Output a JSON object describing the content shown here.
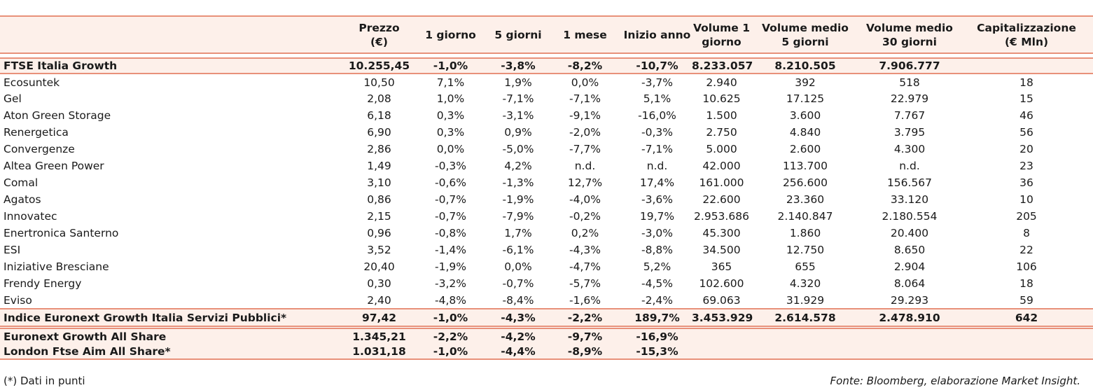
{
  "header": {
    "name": "",
    "price": [
      "Prezzo",
      "(€)"
    ],
    "d1": "1 giorno",
    "d5": "5 giorni",
    "m1": "1 mese",
    "ytd": "Inizio anno",
    "vol1": [
      "Volume 1",
      "giorno"
    ],
    "vol5": [
      "Volume medio",
      "5 giorni"
    ],
    "vol30": [
      "Volume medio",
      "30 giorni"
    ],
    "cap": [
      "Capitalizzazione",
      "(€ Mln)"
    ]
  },
  "index_row": {
    "name": "FTSE Italia Growth",
    "price": "10.255,45",
    "d1": "-1,0%",
    "d5": "-3,8%",
    "m1": "-8,2%",
    "ytd": "-10,7%",
    "vol1": "8.233.057",
    "vol5": "8.210.505",
    "vol30": "7.906.777",
    "cap": ""
  },
  "rows": [
    {
      "name": "Ecosuntek",
      "price": "10,50",
      "d1": "7,1%",
      "d5": "1,9%",
      "m1": "0,0%",
      "ytd": "-3,7%",
      "vol1": "2.940",
      "vol5": "392",
      "vol30": "518",
      "cap": "18"
    },
    {
      "name": "Gel",
      "price": "2,08",
      "d1": "1,0%",
      "d5": "-7,1%",
      "m1": "-7,1%",
      "ytd": "5,1%",
      "vol1": "10.625",
      "vol5": "17.125",
      "vol30": "22.979",
      "cap": "15"
    },
    {
      "name": "Aton Green Storage",
      "price": "6,18",
      "d1": "0,3%",
      "d5": "-3,1%",
      "m1": "-9,1%",
      "ytd": "-16,0%",
      "vol1": "1.500",
      "vol5": "3.600",
      "vol30": "7.767",
      "cap": "46"
    },
    {
      "name": "Renergetica",
      "price": "6,90",
      "d1": "0,3%",
      "d5": "0,9%",
      "m1": "-2,0%",
      "ytd": "-0,3%",
      "vol1": "2.750",
      "vol5": "4.840",
      "vol30": "3.795",
      "cap": "56"
    },
    {
      "name": "Convergenze",
      "price": "2,86",
      "d1": "0,0%",
      "d5": "-5,0%",
      "m1": "-7,7%",
      "ytd": "-7,1%",
      "vol1": "5.000",
      "vol5": "2.600",
      "vol30": "4.300",
      "cap": "20"
    },
    {
      "name": "Altea Green Power",
      "price": "1,49",
      "d1": "-0,3%",
      "d5": "4,2%",
      "m1": "n.d.",
      "ytd": "n.d.",
      "vol1": "42.000",
      "vol5": "113.700",
      "vol30": "n.d.",
      "cap": "23"
    },
    {
      "name": "Comal",
      "price": "3,10",
      "d1": "-0,6%",
      "d5": "-1,3%",
      "m1": "12,7%",
      "ytd": "17,4%",
      "vol1": "161.000",
      "vol5": "256.600",
      "vol30": "156.567",
      "cap": "36"
    },
    {
      "name": "Agatos",
      "price": "0,86",
      "d1": "-0,7%",
      "d5": "-1,9%",
      "m1": "-4,0%",
      "ytd": "-3,6%",
      "vol1": "22.600",
      "vol5": "23.360",
      "vol30": "33.120",
      "cap": "10"
    },
    {
      "name": "Innovatec",
      "price": "2,15",
      "d1": "-0,7%",
      "d5": "-7,9%",
      "m1": "-0,2%",
      "ytd": "19,7%",
      "vol1": "2.953.686",
      "vol5": "2.140.847",
      "vol30": "2.180.554",
      "cap": "205"
    },
    {
      "name": "Enertronica Santerno",
      "price": "0,96",
      "d1": "-0,8%",
      "d5": "1,7%",
      "m1": "0,2%",
      "ytd": "-3,0%",
      "vol1": "45.300",
      "vol5": "1.860",
      "vol30": "20.400",
      "cap": "8"
    },
    {
      "name": "ESI",
      "price": "3,52",
      "d1": "-1,4%",
      "d5": "-6,1%",
      "m1": "-4,3%",
      "ytd": "-8,8%",
      "vol1": "34.500",
      "vol5": "12.750",
      "vol30": "8.650",
      "cap": "22"
    },
    {
      "name": "Iniziative Bresciane",
      "price": "20,40",
      "d1": "-1,9%",
      "d5": "0,0%",
      "m1": "-4,7%",
      "ytd": "5,2%",
      "vol1": "365",
      "vol5": "655",
      "vol30": "2.904",
      "cap": "106"
    },
    {
      "name": "Frendy Energy",
      "price": "0,30",
      "d1": "-3,2%",
      "d5": "-0,7%",
      "m1": "-5,7%",
      "ytd": "-4,5%",
      "vol1": "102.600",
      "vol5": "4.320",
      "vol30": "8.064",
      "cap": "18"
    },
    {
      "name": "Eviso",
      "price": "2,40",
      "d1": "-4,8%",
      "d5": "-8,4%",
      "m1": "-1,6%",
      "ytd": "-2,4%",
      "vol1": "69.063",
      "vol5": "31.929",
      "vol30": "29.293",
      "cap": "59"
    }
  ],
  "sector_row": {
    "name": "Indice Euronext Growth Italia Servizi Pubblici*",
    "price": "97,42",
    "d1": "-1,0%",
    "d5": "-4,3%",
    "m1": "-2,2%",
    "ytd": "189,7%",
    "vol1": "3.453.929",
    "vol5": "2.614.578",
    "vol30": "2.478.910",
    "cap": "642"
  },
  "market_rows": [
    {
      "name": "Euronext Growth All Share",
      "price": "1.345,21",
      "d1": "-2,2%",
      "d5": "-4,2%",
      "m1": "-9,7%",
      "ytd": "-16,9%",
      "vol1": "",
      "vol5": "",
      "vol30": "",
      "cap": ""
    },
    {
      "name": "London Ftse Aim All Share*",
      "price": "1.031,18",
      "d1": "-1,0%",
      "d5": "-4,4%",
      "m1": "-8,9%",
      "ytd": "-15,3%",
      "vol1": "",
      "vol5": "",
      "vol30": "",
      "cap": ""
    }
  ],
  "footer": {
    "note": "(*) Dati in punti",
    "source": "Fonte: Bloomberg, elaborazione Market Insight."
  },
  "colors": {
    "accent_line": "#e8917a",
    "band_fill": "#fdf0ea"
  }
}
